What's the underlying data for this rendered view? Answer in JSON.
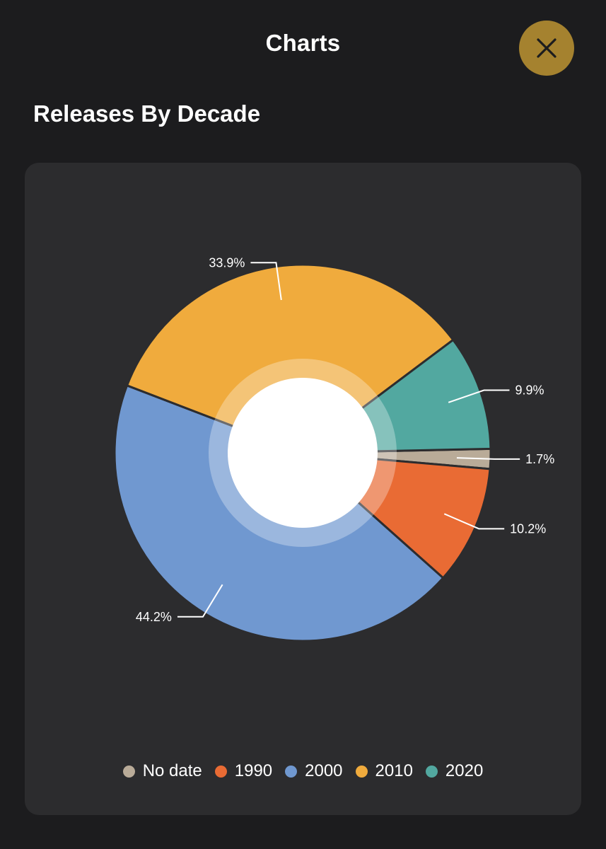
{
  "header": {
    "title": "Charts"
  },
  "section": {
    "title": "Releases By Decade"
  },
  "chart_data": {
    "type": "pie",
    "style": "donut",
    "categories": [
      "No date",
      "1990",
      "2000",
      "2010",
      "2020"
    ],
    "values": [
      1.7,
      10.2,
      44.2,
      33.9,
      9.9
    ],
    "labels": [
      "1.7%",
      "10.2%",
      "44.2%",
      "33.9%",
      "9.9%"
    ],
    "colors": [
      "#b9ab98",
      "#e96b34",
      "#7098d0",
      "#f0ab3d",
      "#52a8a0"
    ],
    "legend": "bottom-center"
  }
}
